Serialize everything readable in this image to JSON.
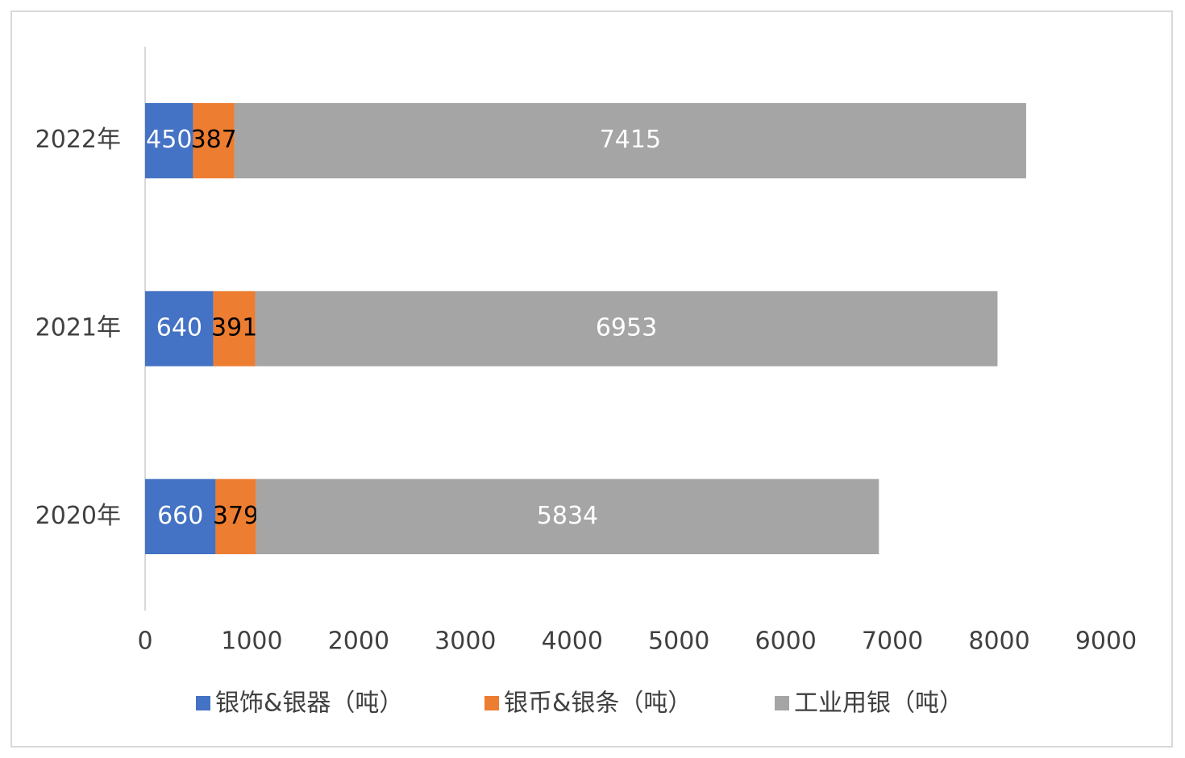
{
  "chart_data": {
    "type": "stacked-barh",
    "categories": [
      "2020年",
      "2021年",
      "2022年"
    ],
    "series": [
      {
        "name": "银饰&银器（吨）",
        "color": "#4472c4",
        "label_color": "#ffffff",
        "values": [
          660,
          640,
          450
        ]
      },
      {
        "name": "银币&银条（吨）",
        "color": "#ed7d31",
        "label_color": "#000000",
        "values": [
          379,
          391,
          387
        ]
      },
      {
        "name": "工业用银（吨）",
        "color": "#a5a5a5",
        "label_color": "#ffffff",
        "values": [
          5834,
          6953,
          7415
        ]
      }
    ],
    "xlim": [
      0,
      9000
    ],
    "xticks": [
      0,
      1000,
      2000,
      3000,
      4000,
      5000,
      6000,
      7000,
      8000,
      9000
    ],
    "grid": false,
    "legend": "bottom"
  }
}
